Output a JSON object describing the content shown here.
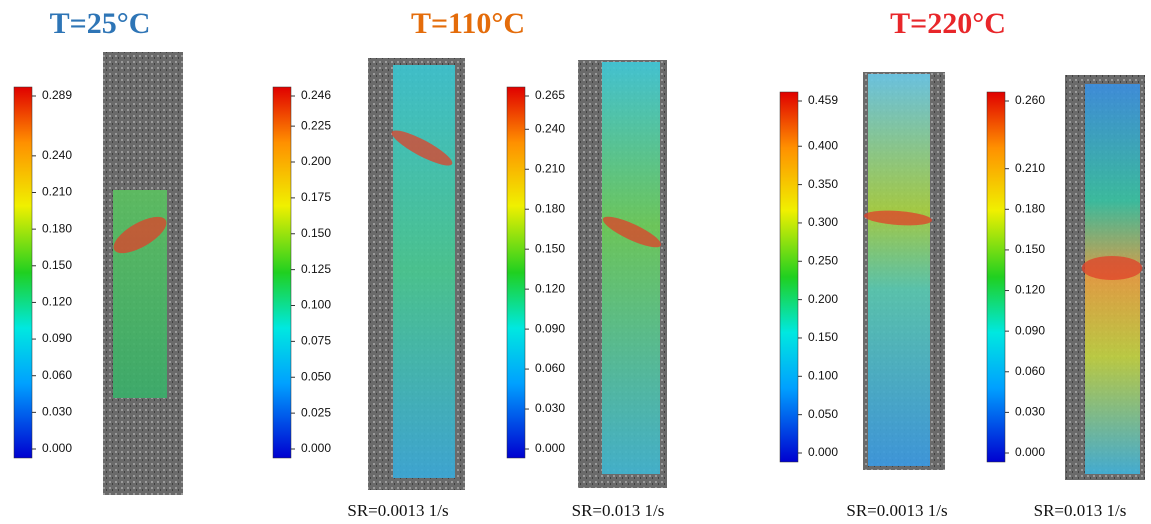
{
  "groups": [
    {
      "title": "T=25°C",
      "panels": [
        {
          "colorbar_ticks": [
            "0.289",
            "0.240",
            "0.210",
            "0.180",
            "0.150",
            "0.120",
            "0.090",
            "0.060",
            "0.030",
            "0.000"
          ]
        }
      ]
    },
    {
      "title": "T=110°C",
      "panels": [
        {
          "colorbar_ticks": [
            "0.246",
            "0.225",
            "0.200",
            "0.175",
            "0.150",
            "0.125",
            "0.100",
            "0.075",
            "0.050",
            "0.025",
            "0.000"
          ],
          "caption": "SR=0.0013 1/s"
        },
        {
          "colorbar_ticks": [
            "0.265",
            "0.240",
            "0.210",
            "0.180",
            "0.150",
            "0.120",
            "0.090",
            "0.060",
            "0.030",
            "0.000"
          ],
          "caption": "SR=0.013 1/s"
        }
      ]
    },
    {
      "title": "T=220°C",
      "panels": [
        {
          "colorbar_ticks": [
            "0.459",
            "0.400",
            "0.350",
            "0.300",
            "0.250",
            "0.200",
            "0.150",
            "0.100",
            "0.050",
            "0.000"
          ],
          "caption": "SR=0.0013 1/s"
        },
        {
          "colorbar_ticks": [
            "0.260",
            "0.210",
            "0.180",
            "0.150",
            "0.120",
            "0.090",
            "0.060",
            "0.030",
            "0.000"
          ],
          "caption": "SR=0.013 1/s"
        }
      ]
    }
  ]
}
